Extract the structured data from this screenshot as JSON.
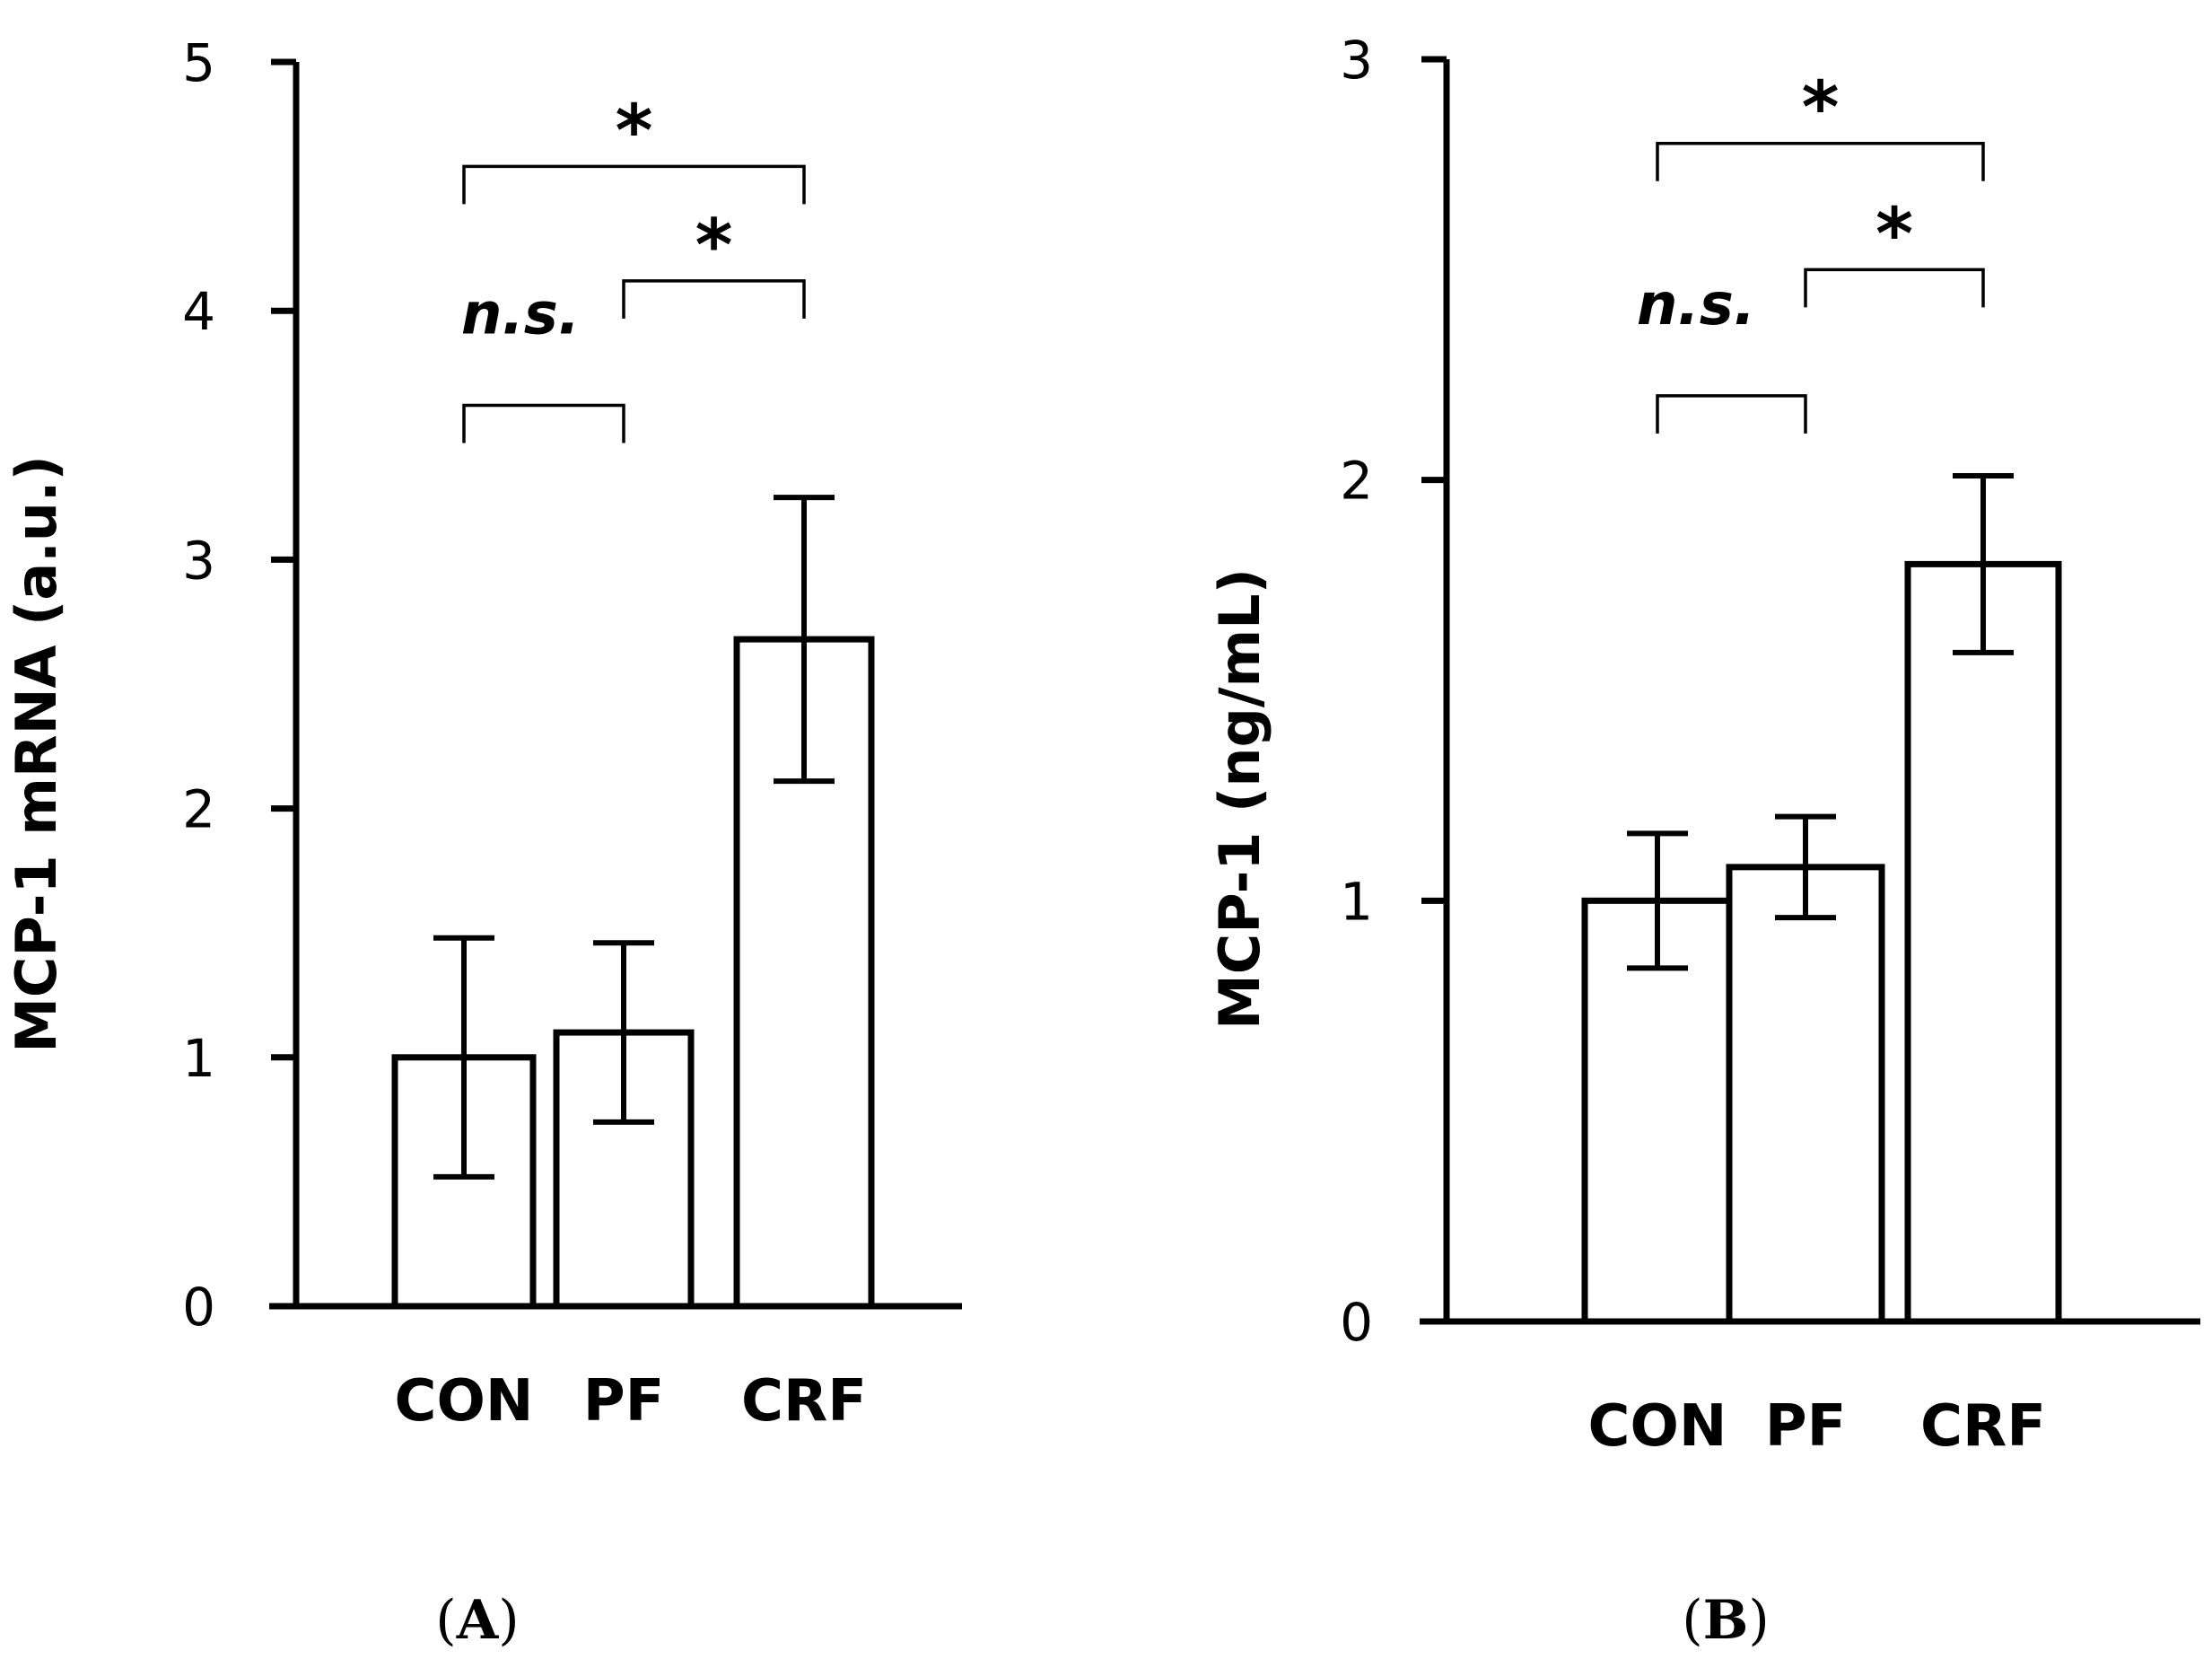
{
  "chart_data": [
    {
      "type": "bar",
      "panel": "(A)",
      "panel_letter": "A",
      "ylabel": "MCP-1 mRNA (a.u.)",
      "ylim": [
        0,
        5
      ],
      "yticks": [
        "0",
        "1",
        "2",
        "3",
        "4",
        "5"
      ],
      "categories": [
        "CON",
        "PF",
        "CRF"
      ],
      "values": [
        1.0,
        1.1,
        2.68
      ],
      "errors": [
        0.48,
        0.36,
        0.57
      ],
      "comparisons": [
        {
          "from": "CON",
          "to": "PF",
          "label": "n.s.",
          "y": 3.62
        },
        {
          "from": "PF",
          "to": "CRF",
          "label": "*",
          "y": 4.12
        },
        {
          "from": "CON",
          "to": "CRF",
          "label": "*",
          "y": 4.58
        }
      ]
    },
    {
      "type": "bar",
      "panel": "(B)",
      "panel_letter": "B",
      "ylabel": "MCP-1  (ng/mL)",
      "ylim": [
        0,
        3
      ],
      "yticks": [
        "0",
        "1",
        "2",
        "3"
      ],
      "categories": [
        "CON",
        "PF",
        "CRF"
      ],
      "values": [
        1.0,
        1.08,
        1.8
      ],
      "errors": [
        0.16,
        0.12,
        0.21
      ],
      "comparisons": [
        {
          "from": "CON",
          "to": "PF",
          "label": "n.s.",
          "y": 2.2
        },
        {
          "from": "PF",
          "to": "CRF",
          "label": "*",
          "y": 2.5
        },
        {
          "from": "CON",
          "to": "CRF",
          "label": "*",
          "y": 2.8
        }
      ]
    }
  ]
}
